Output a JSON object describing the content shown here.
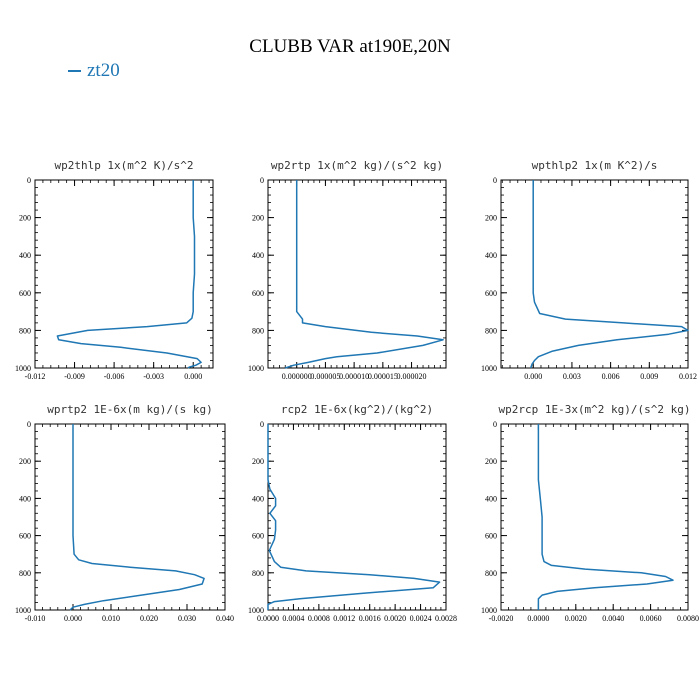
{
  "title": "CLUBB VAR at190E,20N",
  "legend": [
    {
      "label": "zt20",
      "color": "#1f77b4"
    }
  ],
  "chart_data": [
    {
      "type": "line",
      "title": "wp2thlp   1x(m^2 K)/s^2",
      "xlim": [
        -0.012,
        0.0015
      ],
      "ylim": [
        1000,
        0
      ],
      "xticks": [
        -0.012,
        -0.009,
        -0.006,
        -0.003,
        0.0
      ],
      "xtick_labels": [
        "-0.012",
        "-0.009",
        "-0.006",
        "-0.003",
        "0.000"
      ],
      "yticks": [
        0,
        200,
        400,
        600,
        800,
        1000
      ],
      "ytick_labels": [
        "0",
        "200",
        "400",
        "600",
        "800",
        "1000"
      ],
      "series": [
        {
          "name": "zt20",
          "color": "#1f77b4",
          "x": [
            0.0,
            0.0,
            0.0,
            0.0001,
            0.0001,
            0.0001,
            0.0,
            0.0,
            -0.0001,
            -0.0005,
            -0.0035,
            -0.008,
            -0.0103,
            -0.0102,
            -0.0085,
            -0.0055,
            -0.002,
            0.0003,
            0.0006,
            0.0002,
            -0.0003,
            -0.0004
          ],
          "y": [
            0,
            100,
            200,
            300,
            400,
            500,
            600,
            700,
            735,
            760,
            780,
            800,
            830,
            850,
            870,
            890,
            920,
            950,
            970,
            985,
            995,
            1000
          ]
        }
      ]
    },
    {
      "type": "line",
      "title": "wp2rtp   1x(m^2 kg)/(s^2 kg)",
      "xlim": [
        -5e-06,
        2.6e-05
      ],
      "ylim": [
        1000,
        0
      ],
      "xticks": [
        0.0,
        5e-06,
        1e-05,
        1.5e-05,
        2e-05
      ],
      "xtick_labels": [
        "0.000000",
        "0.000005",
        "0.000010",
        "0.000015",
        "0.000020"
      ],
      "yticks": [
        0,
        200,
        400,
        600,
        800,
        1000
      ],
      "ytick_labels": [
        "0",
        "200",
        "400",
        "600",
        "800",
        "1000"
      ],
      "series": [
        {
          "name": "zt20",
          "color": "#1f77b4",
          "x": [
            0.0,
            0.0,
            0.0,
            0.0,
            0.0,
            0.0,
            0.0,
            0.0,
            1e-06,
            1e-06,
            5e-06,
            1.3e-05,
            2.1e-05,
            2.55e-05,
            2.2e-05,
            1.4e-05,
            7e-06,
            5e-06,
            2e-06,
            -5e-07,
            -2e-06
          ],
          "y": [
            0,
            100,
            200,
            300,
            400,
            500,
            600,
            700,
            740,
            760,
            780,
            810,
            830,
            850,
            880,
            920,
            940,
            950,
            970,
            985,
            1000
          ]
        }
      ]
    },
    {
      "type": "line",
      "title": "wpthlp2   1x(m K^2)/s",
      "xlim": [
        -0.0025,
        0.012
      ],
      "ylim": [
        1000,
        0
      ],
      "xticks": [
        0.0,
        0.003,
        0.006,
        0.009,
        0.012
      ],
      "xtick_labels": [
        "0.000",
        "0.003",
        "0.006",
        "0.009",
        "0.012"
      ],
      "yticks": [
        0,
        200,
        400,
        600,
        800,
        1000
      ],
      "ytick_labels": [
        "0",
        "200",
        "400",
        "600",
        "800",
        "1000"
      ],
      "series": [
        {
          "name": "zt20",
          "color": "#1f77b4",
          "x": [
            0.0,
            0.0,
            0.0,
            0.0,
            0.0,
            0.0,
            0.0,
            0.0001,
            0.0005,
            0.0025,
            0.007,
            0.0115,
            0.012,
            0.0105,
            0.0065,
            0.0035,
            0.0015,
            0.0004,
            0.0001,
            -0.0001,
            -0.0002
          ],
          "y": [
            0,
            100,
            200,
            300,
            400,
            500,
            600,
            650,
            710,
            740,
            760,
            780,
            800,
            820,
            850,
            880,
            910,
            940,
            960,
            980,
            1000
          ]
        }
      ]
    },
    {
      "type": "line",
      "title": "wprtp2   1E-6x(m kg)/(s kg)",
      "xlim": [
        -0.01,
        0.04
      ],
      "ylim": [
        1000,
        0
      ],
      "xticks": [
        -0.01,
        0.0,
        0.01,
        0.02,
        0.03,
        0.04
      ],
      "xtick_labels": [
        "-0.010",
        "0.000",
        "0.010",
        "0.020",
        "0.030",
        "0.040"
      ],
      "yticks": [
        0,
        200,
        400,
        600,
        800,
        1000
      ],
      "ytick_labels": [
        "0",
        "200",
        "400",
        "600",
        "800",
        "1000"
      ],
      "series": [
        {
          "name": "zt20",
          "color": "#1f77b4",
          "x": [
            0.0,
            0.0,
            0.0,
            0.0,
            0.0,
            0.0,
            0.0,
            0.0003,
            0.0015,
            0.005,
            0.015,
            0.027,
            0.032,
            0.0345,
            0.034,
            0.028,
            0.018,
            0.008,
            0.003,
            0.0,
            -0.0008
          ],
          "y": [
            0,
            100,
            200,
            300,
            400,
            500,
            600,
            700,
            730,
            750,
            770,
            790,
            810,
            830,
            860,
            890,
            920,
            950,
            970,
            985,
            1000
          ]
        }
      ]
    },
    {
      "type": "line",
      "title": "rcp2   1E-6x(kg^2)/(kg^2)",
      "xlim": [
        0.0,
        0.0028
      ],
      "ylim": [
        1000,
        0
      ],
      "xticks": [
        0.0,
        0.0004,
        0.0008,
        0.0012,
        0.0016,
        0.002,
        0.0024,
        0.0028
      ],
      "xtick_labels": [
        "0.0000",
        "0.0004",
        "0.0008",
        "0.0012",
        "0.0016",
        "0.0020",
        "0.0024",
        "0.0028"
      ],
      "yticks": [
        0,
        200,
        400,
        600,
        800,
        1000
      ],
      "ytick_labels": [
        "0",
        "200",
        "400",
        "600",
        "800",
        "1000"
      ],
      "series": [
        {
          "name": "zt20",
          "color": "#1f77b4",
          "x": [
            0.0,
            0.0,
            0.0,
            0.0,
            3e-05,
            0.00012,
            0.00012,
            3e-05,
            0.00012,
            0.00012,
            0.0001,
            2e-05,
            0.0001,
            0.0002,
            0.0006,
            0.0016,
            0.0023,
            0.0027,
            0.0026,
            0.0015,
            0.0005,
            0.0001,
            0.0,
            0.0,
            0.0
          ],
          "y": [
            0,
            100,
            200,
            300,
            350,
            400,
            440,
            480,
            520,
            570,
            620,
            680,
            740,
            770,
            790,
            810,
            830,
            850,
            880,
            910,
            940,
            955,
            970,
            985,
            1000
          ]
        }
      ]
    },
    {
      "type": "line",
      "title": "wp2rcp   1E-3x(m^2 kg)/(s^2 kg)",
      "xlim": [
        -0.002,
        0.008
      ],
      "ylim": [
        1000,
        0
      ],
      "xticks": [
        -0.002,
        0.0,
        0.002,
        0.004,
        0.006,
        0.008
      ],
      "xtick_labels": [
        "-0.0020",
        "0.0000",
        "0.0020",
        "0.0040",
        "0.0060",
        "0.0080"
      ],
      "yticks": [
        0,
        200,
        400,
        600,
        800,
        1000
      ],
      "ytick_labels": [
        "0",
        "200",
        "400",
        "600",
        "800",
        "1000"
      ],
      "series": [
        {
          "name": "zt20",
          "color": "#1f77b4",
          "x": [
            0.0,
            0.0,
            0.0,
            0.0,
            0.0001,
            0.0002,
            0.0002,
            0.0002,
            0.0003,
            0.0007,
            0.0025,
            0.0055,
            0.0068,
            0.0072,
            0.0058,
            0.003,
            0.001,
            0.0002,
            0.0,
            0.0,
            0.0
          ],
          "y": [
            0,
            100,
            200,
            300,
            400,
            500,
            600,
            700,
            740,
            760,
            780,
            800,
            820,
            840,
            860,
            880,
            900,
            920,
            940,
            970,
            1000
          ]
        }
      ]
    }
  ]
}
